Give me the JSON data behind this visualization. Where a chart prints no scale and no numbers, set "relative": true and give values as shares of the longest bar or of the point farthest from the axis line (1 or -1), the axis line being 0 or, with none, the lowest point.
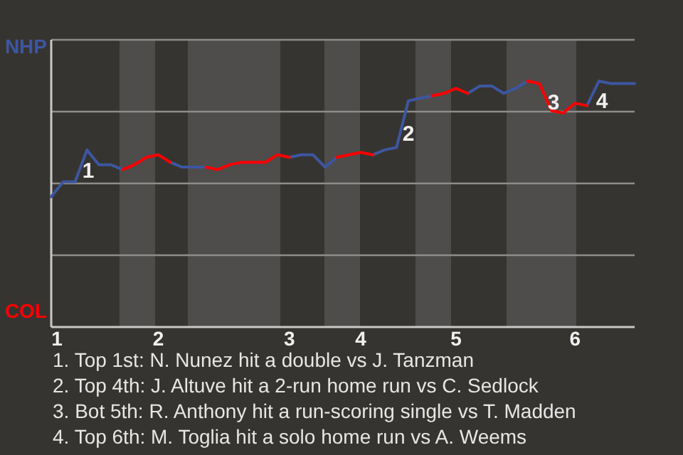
{
  "chart_data": {
    "type": "line",
    "categories": [
      "1",
      null,
      null,
      null,
      null,
      null,
      null,
      null,
      null,
      "2",
      null,
      null,
      null,
      null,
      null,
      null,
      null,
      null,
      null,
      null,
      "3",
      null,
      null,
      null,
      null,
      null,
      "4",
      null,
      null,
      null,
      null,
      null,
      null,
      null,
      "5",
      null,
      null,
      null,
      null,
      null,
      null,
      null,
      null,
      null,
      "6",
      null,
      null,
      null,
      null,
      null
    ],
    "relative": true,
    "series": [
      {
        "name": "NHP",
        "color": "#3d56a0",
        "values": [
          0.53,
          0.59,
          0.59,
          0.72,
          0.66,
          0.66,
          0.64,
          null,
          null,
          null,
          0.67,
          0.65,
          0.65,
          0.65,
          null,
          null,
          null,
          null,
          null,
          null,
          0.69,
          0.7,
          0.7,
          0.65,
          0.69,
          null,
          null,
          0.7,
          0.72,
          0.73,
          0.92,
          0.93,
          0.94,
          null,
          null,
          0.95,
          0.98,
          0.98,
          0.95,
          0.97,
          1,
          null,
          null,
          null,
          null,
          0.9,
          1,
          0.99,
          0.99,
          0.99
        ]
      },
      {
        "name": "COL",
        "color": "#ff0000",
        "values": [
          null,
          null,
          null,
          null,
          null,
          null,
          0.64,
          0.66,
          0.69,
          0.7,
          0.67,
          null,
          null,
          0.65,
          0.64,
          0.66,
          0.67,
          0.67,
          0.67,
          0.7,
          0.69,
          null,
          null,
          null,
          0.69,
          0.7,
          0.71,
          0.7,
          null,
          null,
          null,
          null,
          0.94,
          0.95,
          0.97,
          0.95,
          null,
          null,
          null,
          null,
          1,
          0.99,
          0.88,
          0.87,
          0.91,
          0.9,
          null,
          null,
          null,
          null
        ]
      }
    ],
    "grid": "y",
    "legend": "left",
    "marker": "none",
    "line_style": "solid",
    "annotations": [
      "1",
      "2",
      "3",
      "4",
      "1. Top 1st: N. Nunez hit a double vs J. Tanzman",
      "2. Top 4th: J. Altuve hit a 2-run home run vs C. Sedlock",
      "3. Bot 5th: R. Anthony hit a run-scoring single vs T. Madden",
      "4. Top 6th: M. Toglia hit a solo home run vs A. Weems"
    ]
  }
}
